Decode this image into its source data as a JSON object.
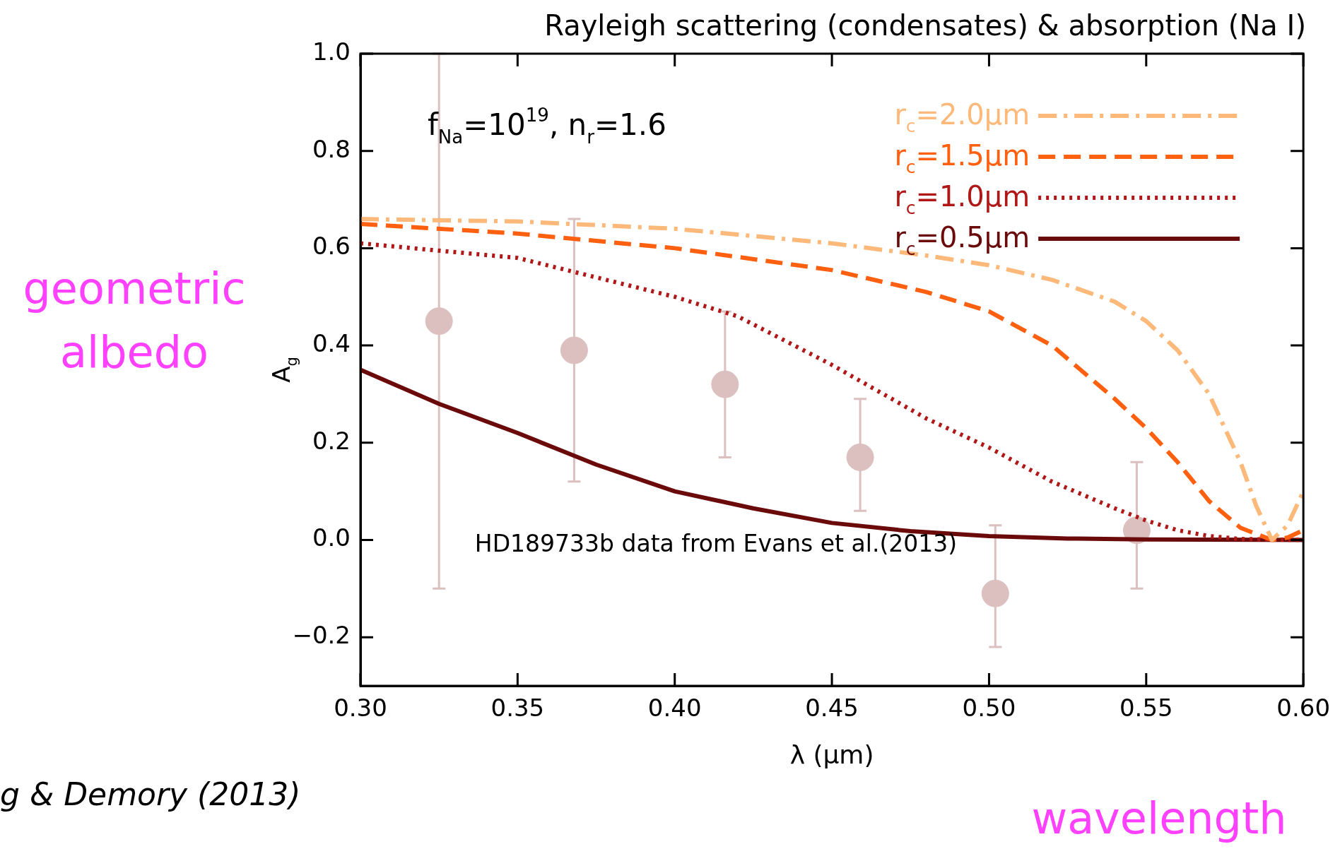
{
  "chart_data": {
    "type": "line",
    "title": "Rayleigh scattering (condensates) & absorption (Na I)",
    "xlabel": "λ (μm)",
    "ylabel": "A$_{g}$",
    "xlim": [
      0.3,
      0.6
    ],
    "ylim": [
      -0.3,
      1.0
    ],
    "xticks": [
      {
        "value": 0.3,
        "label": "0.30"
      },
      {
        "value": 0.35,
        "label": "0.35"
      },
      {
        "value": 0.4,
        "label": "0.40"
      },
      {
        "value": 0.45,
        "label": "0.45"
      },
      {
        "value": 0.5,
        "label": "0.50"
      },
      {
        "value": 0.55,
        "label": "0.55"
      },
      {
        "value": 0.6,
        "label": "0.60"
      }
    ],
    "yticks": [
      {
        "value": -0.2,
        "label": "−0.2"
      },
      {
        "value": 0,
        "label": "0.0"
      },
      {
        "value": 0.2,
        "label": "0.2"
      },
      {
        "value": 0.4,
        "label": "0.4"
      },
      {
        "value": 0.6,
        "label": "0.6"
      },
      {
        "value": 0.8,
        "label": "0.8"
      },
      {
        "value": 1.0,
        "label": "1.0"
      }
    ],
    "grid": false,
    "legend": "top right",
    "series": [
      {
        "name": "r$_{c}$=2.0μm",
        "color": "#fdb97a",
        "line_style": "dashdot",
        "x": [
          0.3,
          0.35,
          0.4,
          0.45,
          0.48,
          0.5,
          0.52,
          0.54,
          0.55,
          0.56,
          0.57,
          0.58,
          0.585,
          0.59,
          0.595,
          0.6
        ],
        "values": [
          0.66,
          0.655,
          0.64,
          0.61,
          0.585,
          0.565,
          0.535,
          0.49,
          0.45,
          0.39,
          0.3,
          0.16,
          0.07,
          0,
          0.03,
          0.1
        ]
      },
      {
        "name": "r$_{c}$=1.5μm",
        "color": "#ff6010",
        "line_style": "dashed",
        "x": [
          0.3,
          0.35,
          0.4,
          0.45,
          0.48,
          0.5,
          0.52,
          0.54,
          0.55,
          0.56,
          0.57,
          0.58,
          0.59,
          0.595,
          0.6
        ],
        "values": [
          0.65,
          0.63,
          0.6,
          0.555,
          0.51,
          0.47,
          0.4,
          0.29,
          0.23,
          0.16,
          0.08,
          0.025,
          0,
          0.005,
          0.02
        ]
      },
      {
        "name": "r$_{c}$=1.0μm",
        "color": "#b01818",
        "line_style": "dotted",
        "x": [
          0.3,
          0.35,
          0.4,
          0.42,
          0.45,
          0.48,
          0.5,
          0.52,
          0.54,
          0.55,
          0.56,
          0.57,
          0.58,
          0.6
        ],
        "values": [
          0.61,
          0.58,
          0.5,
          0.46,
          0.36,
          0.25,
          0.19,
          0.12,
          0.065,
          0.04,
          0.02,
          0.008,
          0.002,
          0
        ]
      },
      {
        "name": "r$_{c}$=0.5μm",
        "color": "#6b0a0a",
        "line_style": "solid",
        "x": [
          0.3,
          0.325,
          0.35,
          0.375,
          0.4,
          0.425,
          0.45,
          0.475,
          0.5,
          0.525,
          0.55,
          0.6
        ],
        "values": [
          0.35,
          0.28,
          0.22,
          0.155,
          0.1,
          0.065,
          0.035,
          0.018,
          0.008,
          0.003,
          0.001,
          0
        ]
      },
      {
        "type": "scatter",
        "marker": "circle",
        "color": "#dcc0c0",
        "x": [
          0.325,
          0.368,
          0.416,
          0.459,
          0.502,
          0.547
        ],
        "values": [
          0.45,
          0.39,
          0.32,
          0.17,
          -0.11,
          0.02
        ],
        "errors": [
          [
            -0.1,
            1.0
          ],
          [
            0.12,
            0.66
          ],
          [
            0.17,
            0.47
          ],
          [
            0.06,
            0.29
          ],
          [
            -0.22,
            0.03
          ],
          [
            -0.1,
            0.16
          ]
        ]
      }
    ],
    "annotations": [
      "f$_{Na}$=10$^{19}$, n$_{r}$=1.6",
      "HD189733b data from Evans et al.(2013)",
      "geometric albedo",
      "wavelength",
      "g & Demory (2013)"
    ]
  }
}
